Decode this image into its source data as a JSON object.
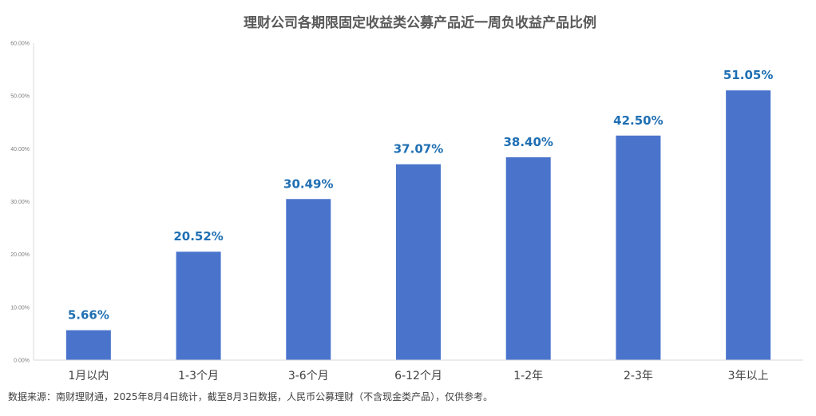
{
  "chart_data": {
    "type": "bar",
    "title": "理财公司各期限固定收益类公募产品近一周负收益产品比例",
    "categories": [
      "1月以内",
      "1-3个月",
      "3-6个月",
      "6-12个月",
      "1-2年",
      "2-3年",
      "3年以上"
    ],
    "values": [
      5.66,
      20.52,
      30.49,
      37.07,
      38.4,
      42.5,
      51.05
    ],
    "data_labels": [
      "5.66%",
      "20.52%",
      "30.49%",
      "37.07%",
      "38.40%",
      "42.50%",
      "51.05%"
    ],
    "ylim": [
      0,
      60
    ],
    "yticks": [
      0,
      10,
      20,
      30,
      40,
      50,
      60
    ],
    "ytick_labels": [
      "0.00%",
      "10.00%",
      "20.00%",
      "30.00%",
      "40.00%",
      "50.00%",
      "60.00%"
    ],
    "xlabel": "",
    "ylabel": "",
    "grid": false,
    "legend": "none",
    "bar_color": "#4a74cc",
    "label_color": "#1f6fb3"
  },
  "footer": {
    "source": "数据来源：南财理财通，2025年8月4日统计，截至8月3日数据，人民币公募理财（不含现金类产品），仅供参考。"
  }
}
